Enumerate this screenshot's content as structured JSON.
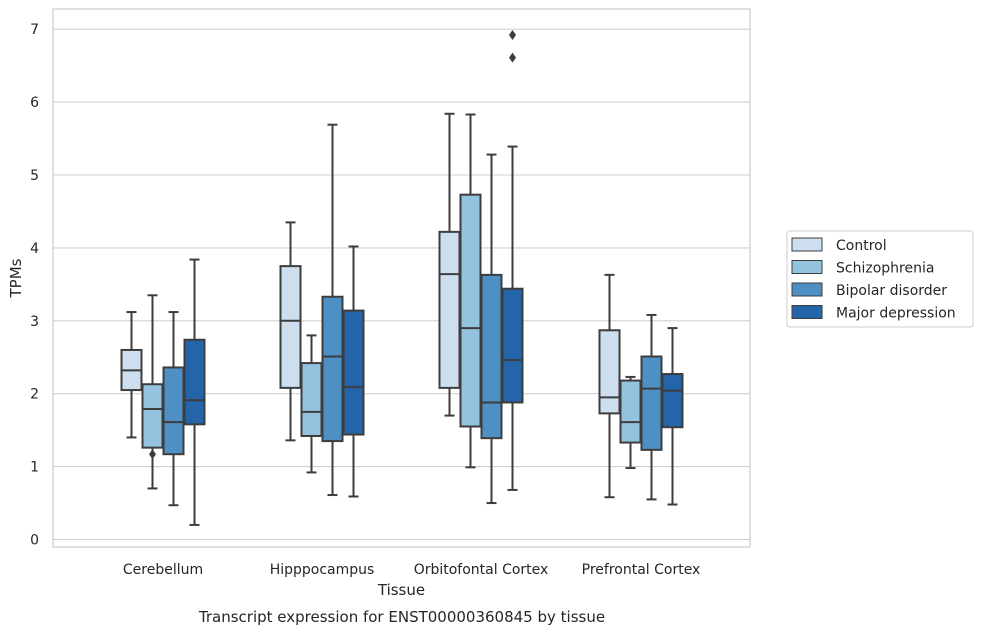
{
  "chart_data": {
    "type": "boxplot",
    "xlabel": "Tissue",
    "ylabel": "TPMs",
    "caption": "Transcript expression for ENST00000360845 by tissue",
    "ylim": [
      -0.1,
      7.3
    ],
    "yticks": [
      0,
      1,
      2,
      3,
      4,
      5,
      6,
      7
    ],
    "grid": "horizontal",
    "legend_position": "right",
    "categories": [
      "Cerebellum",
      "Hipppocampus",
      "Orbitofontal Cortex",
      "Prefrontal Cortex"
    ],
    "series": [
      {
        "name": "Control",
        "color": "#cddfef",
        "boxes": [
          {
            "whisker_low": 1.4,
            "q1": 2.05,
            "median": 2.32,
            "q3": 2.6,
            "whisker_high": 3.12,
            "outliers": []
          },
          {
            "whisker_low": 1.36,
            "q1": 2.08,
            "median": 3.0,
            "q3": 3.75,
            "whisker_high": 4.35,
            "outliers": []
          },
          {
            "whisker_low": 1.7,
            "q1": 2.08,
            "median": 3.64,
            "q3": 4.22,
            "whisker_high": 5.84,
            "outliers": []
          },
          {
            "whisker_low": 0.58,
            "q1": 1.73,
            "median": 1.95,
            "q3": 2.87,
            "whisker_high": 3.63,
            "outliers": []
          }
        ]
      },
      {
        "name": "Schizophrenia",
        "color": "#93c3df",
        "boxes": [
          {
            "whisker_low": 0.7,
            "q1": 1.26,
            "median": 1.79,
            "q3": 2.13,
            "whisker_high": 3.35,
            "outliers": [
              1.17
            ]
          },
          {
            "whisker_low": 0.92,
            "q1": 1.42,
            "median": 1.75,
            "q3": 2.42,
            "whisker_high": 2.8,
            "outliers": []
          },
          {
            "whisker_low": 0.99,
            "q1": 1.55,
            "median": 2.9,
            "q3": 4.73,
            "whisker_high": 5.83,
            "outliers": []
          },
          {
            "whisker_low": 0.98,
            "q1": 1.33,
            "median": 1.61,
            "q3": 2.18,
            "whisker_high": 2.23,
            "outliers": []
          }
        ]
      },
      {
        "name": "Bipolar disorder",
        "color": "#4f90c4",
        "boxes": [
          {
            "whisker_low": 0.47,
            "q1": 1.17,
            "median": 1.61,
            "q3": 2.36,
            "whisker_high": 3.12,
            "outliers": []
          },
          {
            "whisker_low": 0.61,
            "q1": 1.35,
            "median": 2.51,
            "q3": 3.33,
            "whisker_high": 5.69,
            "outliers": []
          },
          {
            "whisker_low": 0.5,
            "q1": 1.39,
            "median": 1.88,
            "q3": 3.63,
            "whisker_high": 5.28,
            "outliers": []
          },
          {
            "whisker_low": 0.55,
            "q1": 1.23,
            "median": 2.07,
            "q3": 2.51,
            "whisker_high": 3.08,
            "outliers": []
          }
        ]
      },
      {
        "name": "Major depression",
        "color": "#2365a8",
        "boxes": [
          {
            "whisker_low": 0.2,
            "q1": 1.58,
            "median": 1.91,
            "q3": 2.74,
            "whisker_high": 3.84,
            "outliers": []
          },
          {
            "whisker_low": 0.59,
            "q1": 1.44,
            "median": 2.09,
            "q3": 3.14,
            "whisker_high": 4.02,
            "outliers": []
          },
          {
            "whisker_low": 0.68,
            "q1": 1.88,
            "median": 2.46,
            "q3": 3.44,
            "whisker_high": 5.39,
            "outliers": [
              6.61,
              6.92
            ]
          },
          {
            "whisker_low": 0.48,
            "q1": 1.54,
            "median": 2.04,
            "q3": 2.27,
            "whisker_high": 2.9,
            "outliers": []
          }
        ]
      }
    ]
  }
}
